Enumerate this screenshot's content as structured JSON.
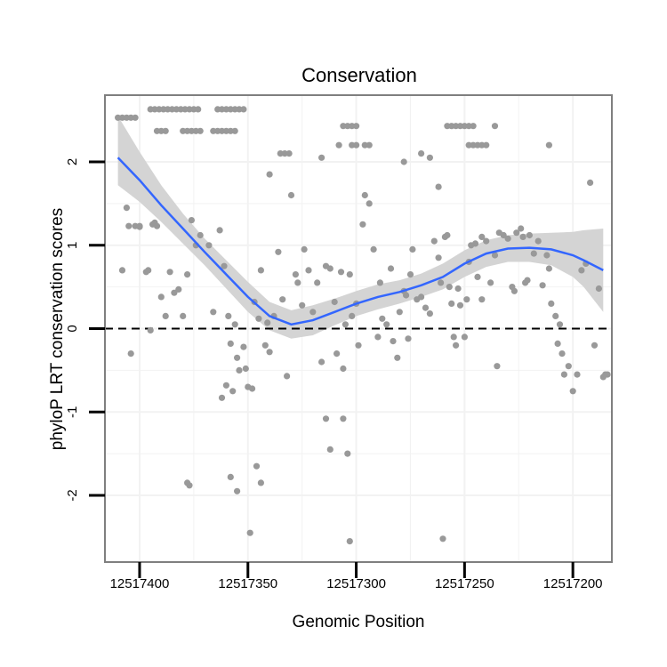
{
  "chart_data": {
    "type": "scatter",
    "title": "Conservation",
    "xlabel": "Genomic Position",
    "ylabel": "phyloP LRT conservation scores",
    "x_reversed": true,
    "xlim": [
      12517416,
      12517182
    ],
    "ylim": [
      -2.8,
      2.8
    ],
    "x_ticks": [
      12517400,
      12517350,
      12517300,
      12517250,
      12517200
    ],
    "x_tick_labels": [
      "12517400",
      "12517350",
      "12517300",
      "12517250",
      "12517200"
    ],
    "y_ticks": [
      -2,
      -1,
      0,
      1,
      2
    ],
    "y_tick_labels": [
      "-2",
      "-1",
      "0",
      "1",
      "2"
    ],
    "reference_line": {
      "y": 0,
      "style": "dashed"
    },
    "grid": true,
    "colors": {
      "points": "#999999",
      "smooth": "#3366ff",
      "ribbon": "#d4d4d4",
      "grid": "#f2f2f2",
      "panel_border": "#7f7f7f",
      "axis_ticks": "#000000",
      "reference_line": "#000000"
    },
    "points": [
      [
        12517410,
        2.53
      ],
      [
        12517408,
        2.53
      ],
      [
        12517406,
        2.53
      ],
      [
        12517404,
        2.53
      ],
      [
        12517402,
        2.53
      ],
      [
        12517395,
        2.63
      ],
      [
        12517393,
        2.63
      ],
      [
        12517391,
        2.63
      ],
      [
        12517389,
        2.63
      ],
      [
        12517387,
        2.63
      ],
      [
        12517385,
        2.63
      ],
      [
        12517383,
        2.63
      ],
      [
        12517381,
        2.63
      ],
      [
        12517379,
        2.63
      ],
      [
        12517377,
        2.63
      ],
      [
        12517375,
        2.63
      ],
      [
        12517373,
        2.63
      ],
      [
        12517364,
        2.63
      ],
      [
        12517362,
        2.63
      ],
      [
        12517360,
        2.63
      ],
      [
        12517358,
        2.63
      ],
      [
        12517356,
        2.63
      ],
      [
        12517354,
        2.63
      ],
      [
        12517352,
        2.63
      ],
      [
        12517392,
        2.37
      ],
      [
        12517390,
        2.37
      ],
      [
        12517388,
        2.37
      ],
      [
        12517380,
        2.37
      ],
      [
        12517378,
        2.37
      ],
      [
        12517376,
        2.37
      ],
      [
        12517374,
        2.37
      ],
      [
        12517372,
        2.37
      ],
      [
        12517366,
        2.37
      ],
      [
        12517364,
        2.37
      ],
      [
        12517362,
        2.37
      ],
      [
        12517360,
        2.37
      ],
      [
        12517358,
        2.37
      ],
      [
        12517356,
        2.37
      ],
      [
        12517306,
        2.43
      ],
      [
        12517304,
        2.43
      ],
      [
        12517302,
        2.43
      ],
      [
        12517300,
        2.43
      ],
      [
        12517258,
        2.43
      ],
      [
        12517256,
        2.43
      ],
      [
        12517254,
        2.43
      ],
      [
        12517252,
        2.43
      ],
      [
        12517250,
        2.43
      ],
      [
        12517248,
        2.43
      ],
      [
        12517246,
        2.43
      ],
      [
        12517236,
        2.43
      ],
      [
        12517308,
        2.2
      ],
      [
        12517302,
        2.2
      ],
      [
        12517300,
        2.2
      ],
      [
        12517296,
        2.2
      ],
      [
        12517294,
        2.2
      ],
      [
        12517248,
        2.2
      ],
      [
        12517246,
        2.2
      ],
      [
        12517244,
        2.2
      ],
      [
        12517242,
        2.2
      ],
      [
        12517240,
        2.2
      ],
      [
        12517211,
        2.2
      ],
      [
        12517335,
        2.1
      ],
      [
        12517333,
        2.1
      ],
      [
        12517331,
        2.1
      ],
      [
        12517408,
        0.7
      ],
      [
        12517406,
        1.45
      ],
      [
        12517405,
        1.23
      ],
      [
        12517404,
        -0.3
      ],
      [
        12517402,
        1.23
      ],
      [
        12517400,
        1.23
      ],
      [
        12517397,
        0.68
      ],
      [
        12517396,
        0.7
      ],
      [
        12517394,
        1.25
      ],
      [
        12517393,
        1.27
      ],
      [
        12517392,
        1.23
      ],
      [
        12517390,
        0.38
      ],
      [
        12517388,
        0.15
      ],
      [
        12517386,
        0.68
      ],
      [
        12517384,
        0.43
      ],
      [
        12517382,
        0.47
      ],
      [
        12517380,
        0.15
      ],
      [
        12517378,
        0.65
      ],
      [
        12517376,
        1.3
      ],
      [
        12517374,
        1.0
      ],
      [
        12517372,
        1.12
      ],
      [
        12517368,
        1.0
      ],
      [
        12517366,
        0.2
      ],
      [
        12517363,
        1.18
      ],
      [
        12517361,
        0.75
      ],
      [
        12517359,
        0.15
      ],
      [
        12517358,
        -0.18
      ],
      [
        12517356,
        0.05
      ],
      [
        12517355,
        -0.35
      ],
      [
        12517354,
        -0.5
      ],
      [
        12517352,
        -0.22
      ],
      [
        12517351,
        -0.48
      ],
      [
        12517350,
        -0.7
      ],
      [
        12517348,
        -0.72
      ],
      [
        12517347,
        0.32
      ],
      [
        12517345,
        0.12
      ],
      [
        12517344,
        0.7
      ],
      [
        12517342,
        -0.2
      ],
      [
        12517341,
        0.07
      ],
      [
        12517340,
        -0.28
      ],
      [
        12517338,
        0.15
      ],
      [
        12517336,
        0.92
      ],
      [
        12517334,
        0.35
      ],
      [
        12517332,
        -0.57
      ],
      [
        12517330,
        1.6
      ],
      [
        12517328,
        0.65
      ],
      [
        12517327,
        0.55
      ],
      [
        12517325,
        0.28
      ],
      [
        12517324,
        0.95
      ],
      [
        12517322,
        0.7
      ],
      [
        12517320,
        0.2
      ],
      [
        12517318,
        0.55
      ],
      [
        12517316,
        -0.4
      ],
      [
        12517314,
        0.75
      ],
      [
        12517312,
        0.72
      ],
      [
        12517310,
        0.32
      ],
      [
        12517309,
        -0.3
      ],
      [
        12517307,
        0.68
      ],
      [
        12517306,
        -0.48
      ],
      [
        12517305,
        0.05
      ],
      [
        12517303,
        0.65
      ],
      [
        12517302,
        0.15
      ],
      [
        12517300,
        0.3
      ],
      [
        12517299,
        -0.2
      ],
      [
        12517297,
        1.25
      ],
      [
        12517296,
        1.6
      ],
      [
        12517294,
        1.5
      ],
      [
        12517292,
        0.95
      ],
      [
        12517290,
        -0.1
      ],
      [
        12517289,
        0.55
      ],
      [
        12517288,
        0.12
      ],
      [
        12517286,
        0.05
      ],
      [
        12517284,
        0.72
      ],
      [
        12517283,
        -0.15
      ],
      [
        12517281,
        -0.35
      ],
      [
        12517280,
        0.2
      ],
      [
        12517278,
        0.45
      ],
      [
        12517277,
        0.4
      ],
      [
        12517276,
        -0.12
      ],
      [
        12517275,
        0.65
      ],
      [
        12517274,
        0.95
      ],
      [
        12517272,
        0.35
      ],
      [
        12517270,
        0.38
      ],
      [
        12517268,
        0.25
      ],
      [
        12517266,
        0.18
      ],
      [
        12517264,
        1.05
      ],
      [
        12517262,
        0.85
      ],
      [
        12517261,
        0.55
      ],
      [
        12517259,
        1.1
      ],
      [
        12517258,
        1.12
      ],
      [
        12517257,
        0.5
      ],
      [
        12517256,
        0.3
      ],
      [
        12517255,
        -0.1
      ],
      [
        12517254,
        -0.2
      ],
      [
        12517253,
        0.48
      ],
      [
        12517252,
        0.28
      ],
      [
        12517250,
        -0.1
      ],
      [
        12517249,
        0.35
      ],
      [
        12517248,
        0.8
      ],
      [
        12517247,
        1.0
      ],
      [
        12517245,
        1.02
      ],
      [
        12517244,
        0.62
      ],
      [
        12517242,
        1.1
      ],
      [
        12517240,
        1.05
      ],
      [
        12517238,
        0.55
      ],
      [
        12517236,
        0.88
      ],
      [
        12517234,
        1.15
      ],
      [
        12517232,
        1.12
      ],
      [
        12517230,
        1.08
      ],
      [
        12517228,
        0.5
      ],
      [
        12517227,
        0.45
      ],
      [
        12517226,
        1.15
      ],
      [
        12517224,
        1.2
      ],
      [
        12517223,
        1.1
      ],
      [
        12517222,
        0.55
      ],
      [
        12517221,
        0.58
      ],
      [
        12517220,
        1.12
      ],
      [
        12517218,
        0.9
      ],
      [
        12517216,
        1.05
      ],
      [
        12517214,
        0.52
      ],
      [
        12517212,
        0.88
      ],
      [
        12517211,
        0.72
      ],
      [
        12517210,
        0.3
      ],
      [
        12517208,
        0.15
      ],
      [
        12517207,
        -0.18
      ],
      [
        12517206,
        0.05
      ],
      [
        12517205,
        -0.3
      ],
      [
        12517204,
        -0.55
      ],
      [
        12517202,
        -0.45
      ],
      [
        12517200,
        -0.75
      ],
      [
        12517198,
        -0.55
      ],
      [
        12517196,
        0.7
      ],
      [
        12517194,
        0.78
      ],
      [
        12517192,
        1.75
      ],
      [
        12517190,
        -0.2
      ],
      [
        12517188,
        0.48
      ],
      [
        12517186,
        -0.58
      ],
      [
        12517185,
        -0.55
      ],
      [
        12517184,
        -0.55
      ],
      [
        12517378,
        -1.85
      ],
      [
        12517377,
        -1.88
      ],
      [
        12517362,
        -0.83
      ],
      [
        12517360,
        -0.68
      ],
      [
        12517358,
        -1.78
      ],
      [
        12517357,
        -0.75
      ],
      [
        12517355,
        -1.95
      ],
      [
        12517349,
        -2.45
      ],
      [
        12517346,
        -1.65
      ],
      [
        12517344,
        -1.85
      ],
      [
        12517314,
        -1.08
      ],
      [
        12517312,
        -1.45
      ],
      [
        12517306,
        -1.08
      ],
      [
        12517304,
        -1.5
      ],
      [
        12517303,
        -2.55
      ],
      [
        12517260,
        -2.52
      ],
      [
        12517400,
        1.22
      ],
      [
        12517395,
        -0.02
      ],
      [
        12517340,
        1.85
      ],
      [
        12517270,
        2.1
      ],
      [
        12517262,
        1.7
      ],
      [
        12517266,
        2.05
      ],
      [
        12517278,
        2.0
      ],
      [
        12517316,
        2.05
      ],
      [
        12517242,
        0.35
      ],
      [
        12517235,
        -0.45
      ]
    ],
    "smooth": {
      "method": "loess",
      "x": [
        12517410,
        12517400,
        12517390,
        12517380,
        12517370,
        12517360,
        12517350,
        12517340,
        12517330,
        12517320,
        12517310,
        12517300,
        12517290,
        12517280,
        12517270,
        12517260,
        12517250,
        12517240,
        12517230,
        12517220,
        12517210,
        12517200,
        12517195,
        12517186
      ],
      "y": [
        2.05,
        1.78,
        1.48,
        1.2,
        0.92,
        0.65,
        0.38,
        0.15,
        0.05,
        0.1,
        0.2,
        0.3,
        0.38,
        0.44,
        0.52,
        0.62,
        0.78,
        0.9,
        0.96,
        0.97,
        0.95,
        0.88,
        0.82,
        0.7
      ],
      "lower": [
        1.72,
        1.52,
        1.28,
        1.02,
        0.76,
        0.48,
        0.2,
        -0.02,
        -0.12,
        -0.08,
        0.04,
        0.15,
        0.23,
        0.3,
        0.38,
        0.47,
        0.62,
        0.74,
        0.8,
        0.8,
        0.76,
        0.62,
        0.5,
        0.2
      ],
      "upper": [
        2.55,
        2.12,
        1.72,
        1.38,
        1.08,
        0.82,
        0.56,
        0.32,
        0.22,
        0.28,
        0.36,
        0.45,
        0.53,
        0.58,
        0.66,
        0.78,
        0.94,
        1.06,
        1.12,
        1.14,
        1.15,
        1.16,
        1.18,
        1.2
      ]
    }
  }
}
